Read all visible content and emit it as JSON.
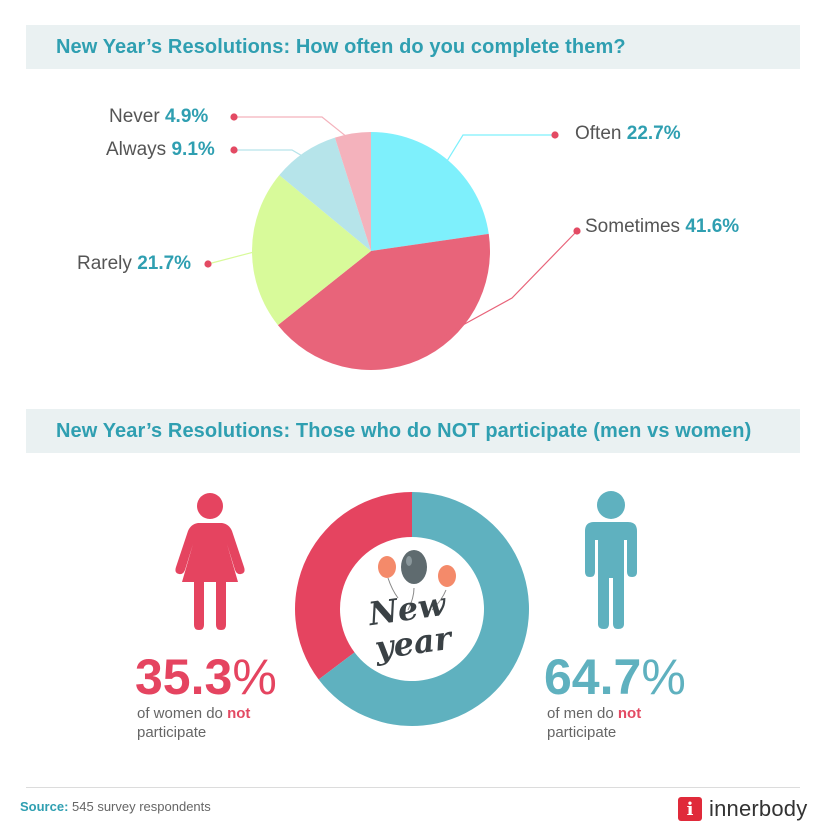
{
  "chart_data": [
    {
      "type": "pie",
      "title": "New Year’s Resolutions: How often do you complete them?",
      "categories": [
        "Often",
        "Sometimes",
        "Rarely",
        "Always",
        "Never"
      ],
      "values": [
        22.7,
        41.6,
        21.7,
        9.1,
        4.9
      ],
      "value_labels": [
        "22.7%",
        "41.6%",
        "21.7%",
        "9.1%",
        "4.9%"
      ],
      "colors": [
        "#7ef0fc",
        "#e8647a",
        "#d8fa9a",
        "#b6e4ea",
        "#f4b2bc"
      ]
    },
    {
      "type": "pie",
      "variant": "donut",
      "title": "New Year’s Resolutions: Those who do NOT participate (men vs women)",
      "categories": [
        "women",
        "men"
      ],
      "values": [
        35.3,
        64.7
      ],
      "colors": [
        "#e54460",
        "#5fb1bf"
      ],
      "center_text": [
        "New",
        "year"
      ]
    }
  ],
  "women": {
    "number": "35.3",
    "sym": "%",
    "line1_pre": "of women do ",
    "line1_not": "not",
    "line2": "participate",
    "color": "#e54460"
  },
  "men": {
    "number": "64.7",
    "sym": "%",
    "line1_pre": "of men do ",
    "line1_not": "not",
    "line2": "participate",
    "color": "#5fb1bf"
  },
  "source": {
    "label": "Source:",
    "text": " 545 survey respondents"
  },
  "brand": {
    "mark": "i",
    "name": "innerbody"
  },
  "icons": {
    "woman": "woman-icon",
    "man": "man-icon",
    "balloons": "balloons-icon",
    "logo": "innerbody-logo-icon"
  }
}
